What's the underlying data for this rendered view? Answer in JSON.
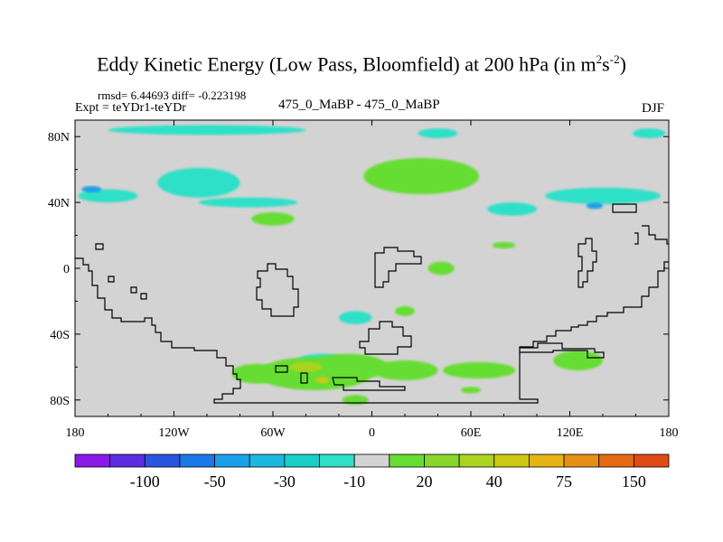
{
  "chart_data": {
    "type": "heatmap",
    "title_main": "Eddy Kinetic Energy (Low Pass, Bloomfield) at 200 hPa (in m",
    "title_unit_sq": "2",
    "title_unit_s": "s",
    "title_unit_exp": "-2",
    "title_close": ")",
    "stats_line": "rmsd= 6.44693 diff= -0.223198",
    "expt_label": "Expt = teYDr1-teYDr",
    "center_label": "475_0_MaBP - 475_0_MaBP",
    "season_label": "DJF",
    "xlim": [
      -180,
      180
    ],
    "ylim": [
      -90,
      90
    ],
    "x_ticks": [
      -180,
      -120,
      -60,
      0,
      60,
      120,
      180
    ],
    "x_tick_labels": [
      "180",
      "120W",
      "60W",
      "0",
      "60E",
      "120E",
      "180"
    ],
    "y_ticks": [
      80,
      40,
      0,
      -40,
      -80
    ],
    "y_tick_labels": [
      "80N",
      "40N",
      "0",
      "40S",
      "80S"
    ],
    "background_color": "#d3d3d3",
    "colorbar": {
      "colors": [
        "#8a19e6",
        "#5a2ee0",
        "#2a55e0",
        "#1a78e8",
        "#1aa0e8",
        "#1ab8e0",
        "#17cfc8",
        "#2ee0c8",
        "#d3d3d3",
        "#66dd33",
        "#88d72a",
        "#aad41f",
        "#ccc814",
        "#e6b414",
        "#e68f14",
        "#e66a14",
        "#e04a14"
      ],
      "labels": [
        "-100",
        "-50",
        "-30",
        "-10",
        "20",
        "40",
        "75",
        "150"
      ],
      "label_boundaries": [
        2,
        4,
        6,
        8,
        10,
        12,
        14,
        16
      ]
    },
    "regions": [
      {
        "color": "#2ee0c8",
        "lon": -105,
        "lat": 52,
        "rlon": 25,
        "rlat": 9
      },
      {
        "color": "#2ee0c8",
        "lon": -160,
        "lat": 44,
        "rlon": 18,
        "rlat": 4
      },
      {
        "color": "#2ee0c8",
        "lon": -75,
        "lat": 40,
        "rlon": 30,
        "rlat": 3
      },
      {
        "color": "#2ee0c8",
        "lon": -100,
        "lat": 84,
        "rlon": 60,
        "rlat": 3
      },
      {
        "color": "#2ee0c8",
        "lon": 40,
        "lat": 82,
        "rlon": 12,
        "rlat": 3
      },
      {
        "color": "#2ee0c8",
        "lon": 140,
        "lat": 44,
        "rlon": 35,
        "rlat": 5
      },
      {
        "color": "#2ee0c8",
        "lon": 85,
        "lat": 36,
        "rlon": 15,
        "rlat": 4
      },
      {
        "color": "#2ee0c8",
        "lon": 168,
        "lat": 82,
        "rlon": 10,
        "rlat": 3
      },
      {
        "color": "#2ee0c8",
        "lon": -10,
        "lat": -30,
        "rlon": 10,
        "rlat": 4
      },
      {
        "color": "#2ee0c8",
        "lon": -30,
        "lat": -56,
        "rlon": 15,
        "rlat": 4
      },
      {
        "color": "#66dd33",
        "lon": 30,
        "lat": 56,
        "rlon": 35,
        "rlat": 11
      },
      {
        "color": "#66dd33",
        "lon": -60,
        "lat": 30,
        "rlon": 13,
        "rlat": 4
      },
      {
        "color": "#66dd33",
        "lon": 80,
        "lat": 14,
        "rlon": 7,
        "rlat": 2
      },
      {
        "color": "#66dd33",
        "lon": 42,
        "lat": 0,
        "rlon": 8,
        "rlat": 4
      },
      {
        "color": "#66dd33",
        "lon": 20,
        "lat": -26,
        "rlon": 6,
        "rlat": 3
      },
      {
        "color": "#66dd33",
        "lon": -35,
        "lat": -64,
        "rlon": 35,
        "rlat": 10
      },
      {
        "color": "#66dd33",
        "lon": -15,
        "lat": -60,
        "rlon": 25,
        "rlat": 8
      },
      {
        "color": "#66dd33",
        "lon": 20,
        "lat": -62,
        "rlon": 20,
        "rlat": 6
      },
      {
        "color": "#66dd33",
        "lon": 65,
        "lat": -62,
        "rlon": 22,
        "rlat": 5
      },
      {
        "color": "#66dd33",
        "lon": 125,
        "lat": -56,
        "rlon": 15,
        "rlat": 6
      },
      {
        "color": "#66dd33",
        "lon": -70,
        "lat": -64,
        "rlon": 15,
        "rlat": 6
      },
      {
        "color": "#66dd33",
        "lon": -10,
        "lat": -80,
        "rlon": 8,
        "rlat": 3
      },
      {
        "color": "#66dd33",
        "lon": 60,
        "lat": -74,
        "rlon": 6,
        "rlat": 2
      },
      {
        "color": "#aad41f",
        "lon": -40,
        "lat": -60,
        "rlon": 10,
        "rlat": 3
      },
      {
        "color": "#ccc814",
        "lon": -30,
        "lat": -68,
        "rlon": 4,
        "rlat": 2
      },
      {
        "color": "#1aa0e8",
        "lon": -170,
        "lat": 48,
        "rlon": 6,
        "rlat": 2
      },
      {
        "color": "#1aa0e8",
        "lon": 135,
        "lat": 38,
        "rlon": 5,
        "rlat": 2
      }
    ]
  }
}
